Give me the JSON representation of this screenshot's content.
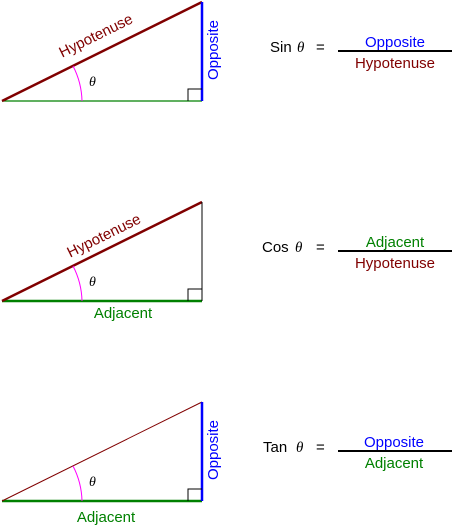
{
  "colors": {
    "hypotenuse": "#800000",
    "opposite": "#0000ff",
    "adjacent": "#008000",
    "angle_arc": "#ff00ff",
    "plain_line": "#000000"
  },
  "symbol_theta": "θ",
  "equals": "=",
  "panels": [
    {
      "id": "sin",
      "side_labels": {
        "hypotenuse": "Hypotenuse",
        "opposite": "Opposite",
        "adjacent": ""
      },
      "equation": {
        "func": "Sin",
        "numerator": "Opposite",
        "denominator": "Hypotenuse"
      }
    },
    {
      "id": "cos",
      "side_labels": {
        "hypotenuse": "Hypotenuse",
        "opposite": "",
        "adjacent": "Adjacent"
      },
      "equation": {
        "func": "Cos",
        "numerator": "Adjacent",
        "denominator": "Hypotenuse"
      }
    },
    {
      "id": "tan",
      "side_labels": {
        "hypotenuse": "",
        "opposite": "Opposite",
        "adjacent": "Adjacent"
      },
      "equation": {
        "func": "Tan",
        "numerator": "Opposite",
        "denominator": "Adjacent"
      }
    }
  ]
}
